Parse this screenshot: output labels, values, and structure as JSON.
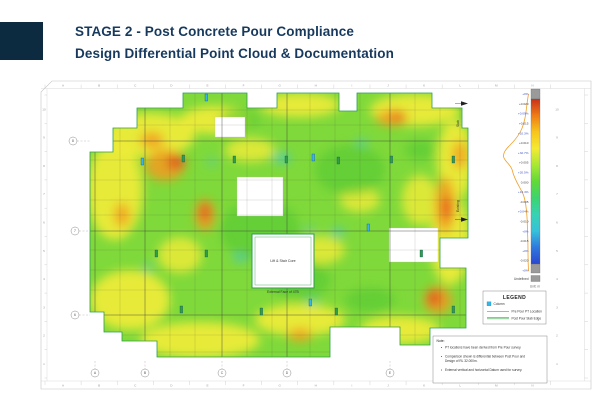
{
  "header": {
    "title_line1": "STAGE 2 - Post Concrete Pour Compliance",
    "title_line2": "Design Differential Point Cloud & Documentation"
  },
  "drawing": {
    "ruler_letters": [
      "A",
      "B",
      "C",
      "D",
      "E",
      "F",
      "G",
      "H",
      "I",
      "J",
      "K",
      "L",
      "M",
      "N"
    ],
    "ruler_numbers": [
      "10",
      "9",
      "8",
      "7",
      "6",
      "5",
      "4",
      "3",
      "2",
      "1"
    ],
    "row_bubbles": [
      "8",
      "7",
      "6"
    ],
    "col_bubbles": [
      "A",
      "B",
      "C",
      "D",
      "E"
    ],
    "core_label": "Lift & Stair Core",
    "face_label": "External Face of 47B",
    "annotation_slab": "Slab",
    "annotation_existing": "Existing"
  },
  "scale": {
    "unit_label": "Unit: m",
    "undefined_label": "Undefined",
    "percent_color": "#4059c8",
    "value_color": "#444444",
    "percentages": [
      "+0%",
      "+0.09%",
      "+10.3%",
      "+32.7%",
      "+20.5%",
      "+13.4%",
      "+0.04%",
      "+0%",
      "+0%",
      "+0%"
    ],
    "values": [
      "+0.020",
      "+0.015",
      "+0.010",
      "+0.005",
      "0.000",
      "-0.005",
      "-0.010",
      "-0.015",
      "-0.020"
    ],
    "gradient_stops": [
      "#c93018",
      "#ee7c17",
      "#f7c51c",
      "#f4ea33",
      "#a8e834",
      "#62d937",
      "#3cd470",
      "#38d2b4",
      "#36c2da",
      "#3078de",
      "#2b46d0"
    ]
  },
  "legend": {
    "title": "LEGEND",
    "items": [
      {
        "type": "column-swatch",
        "label": "Column"
      },
      {
        "type": "pre-pour-line",
        "label": "Pre Pour PT Location"
      },
      {
        "type": "post-pour-line",
        "label": "Post Pour Slab Edge"
      }
    ]
  },
  "notes": {
    "heading": "Note:",
    "items": [
      "PT locations have been derived from Pre Pour survey.",
      "Comparison shown is differential between Post Pour and Design of RL 32.000m.",
      "External vertical and horizontal Datum used for survey."
    ]
  },
  "colors": {
    "accent_block": "#0d2b40",
    "title_text": "#16395d",
    "outline_green": "#2f9e4f",
    "heatmap_base": "#7fd93a"
  }
}
